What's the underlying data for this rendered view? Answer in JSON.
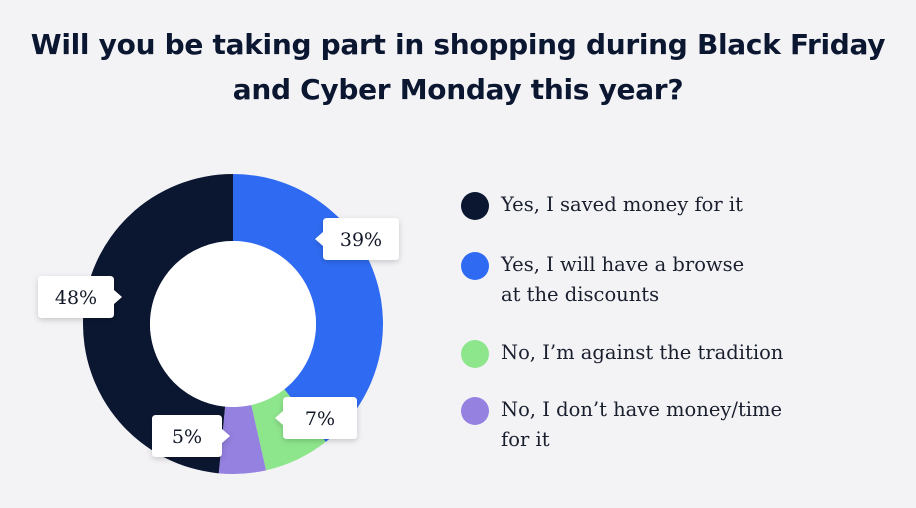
{
  "chart_data": {
    "type": "pie",
    "title_lines": [
      "Will you be taking part in shopping during Black Friday",
      "and Cyber Monday this year?"
    ],
    "slices": [
      {
        "label": "Yes, I saved money for it",
        "value": 48,
        "value_label": "48%",
        "color": "#0b1630"
      },
      {
        "label": "Yes, I will have a browse\nat the discounts",
        "value": 39,
        "value_label": "39%",
        "color": "#2f6bf2"
      },
      {
        "label": "No, I’m against the tradition",
        "value": 7,
        "value_label": "7%",
        "color": "#8ee68c"
      },
      {
        "label": "No, I don’t have money/time\nfor it",
        "value": 5,
        "value_label": "5%",
        "color": "#9481e0"
      }
    ],
    "legend_placement": "right",
    "donut": true
  }
}
